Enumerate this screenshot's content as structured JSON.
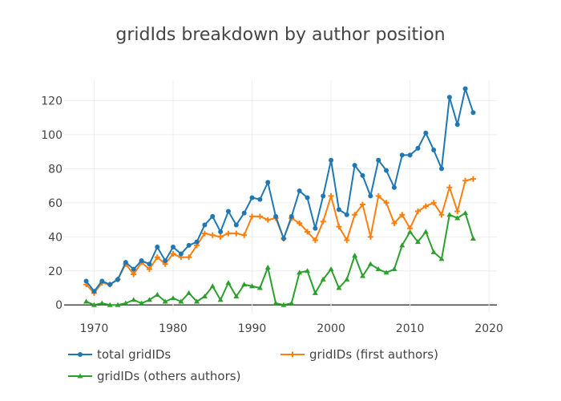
{
  "chart_data": {
    "type": "line",
    "title": "gridIds breakdown by author position",
    "xlabel": "",
    "ylabel": "",
    "xlim": [
      1966.2,
      2021.0
    ],
    "ylim": [
      -4.6,
      132.0
    ],
    "x_ticks": [
      1970,
      1980,
      1990,
      2000,
      2010,
      2020
    ],
    "y_ticks": [
      0,
      20,
      40,
      60,
      80,
      100,
      120
    ],
    "x": [
      1969,
      1970,
      1971,
      1972,
      1973,
      1974,
      1975,
      1976,
      1977,
      1978,
      1979,
      1980,
      1981,
      1982,
      1983,
      1984,
      1985,
      1986,
      1987,
      1988,
      1989,
      1990,
      1991,
      1992,
      1993,
      1994,
      1995,
      1996,
      1997,
      1998,
      1999,
      2000,
      2001,
      2002,
      2003,
      2004,
      2005,
      2006,
      2007,
      2008,
      2009,
      2010,
      2011,
      2012,
      2013,
      2014,
      2015,
      2016,
      2017,
      2018
    ],
    "series": [
      {
        "name": "total gridIDs",
        "color": "#1f77b4",
        "marker": "circle",
        "values": [
          14,
          8,
          14,
          12,
          15,
          25,
          21,
          26,
          24,
          34,
          26,
          34,
          30,
          35,
          37,
          47,
          52,
          43,
          55,
          47,
          54,
          63,
          62,
          72,
          52,
          39,
          52,
          67,
          63,
          45,
          64,
          85,
          56,
          53,
          82,
          76,
          64,
          85,
          79,
          69,
          88,
          88,
          92,
          101,
          91,
          80,
          122,
          106,
          127,
          113
        ]
      },
      {
        "name": "gridIDs (first authors)",
        "color": "#ff7f0e",
        "marker": "plus",
        "values": [
          12,
          7,
          13,
          12,
          15,
          24,
          18,
          25,
          21,
          28,
          24,
          30,
          28,
          28,
          35,
          42,
          41,
          40,
          42,
          42,
          41,
          52,
          52,
          50,
          51,
          39,
          51,
          48,
          43,
          38,
          49,
          64,
          46,
          38,
          53,
          59,
          40,
          64,
          60,
          48,
          53,
          45,
          55,
          58,
          60,
          53,
          69,
          55,
          73,
          74
        ]
      },
      {
        "name": "gridIDs (others authors)",
        "color": "#2ca02c",
        "marker": "triangle",
        "values": [
          2,
          0,
          1,
          0,
          0,
          1,
          3,
          1,
          3,
          6,
          2,
          4,
          2,
          7,
          2,
          5,
          11,
          3,
          13,
          5,
          12,
          11,
          10,
          22,
          1,
          0,
          1,
          19,
          20,
          7,
          15,
          21,
          10,
          15,
          29,
          17,
          24,
          21,
          19,
          21,
          35,
          43,
          37,
          43,
          31,
          27,
          53,
          51,
          54,
          39
        ]
      }
    ],
    "legend_position": "bottom"
  }
}
